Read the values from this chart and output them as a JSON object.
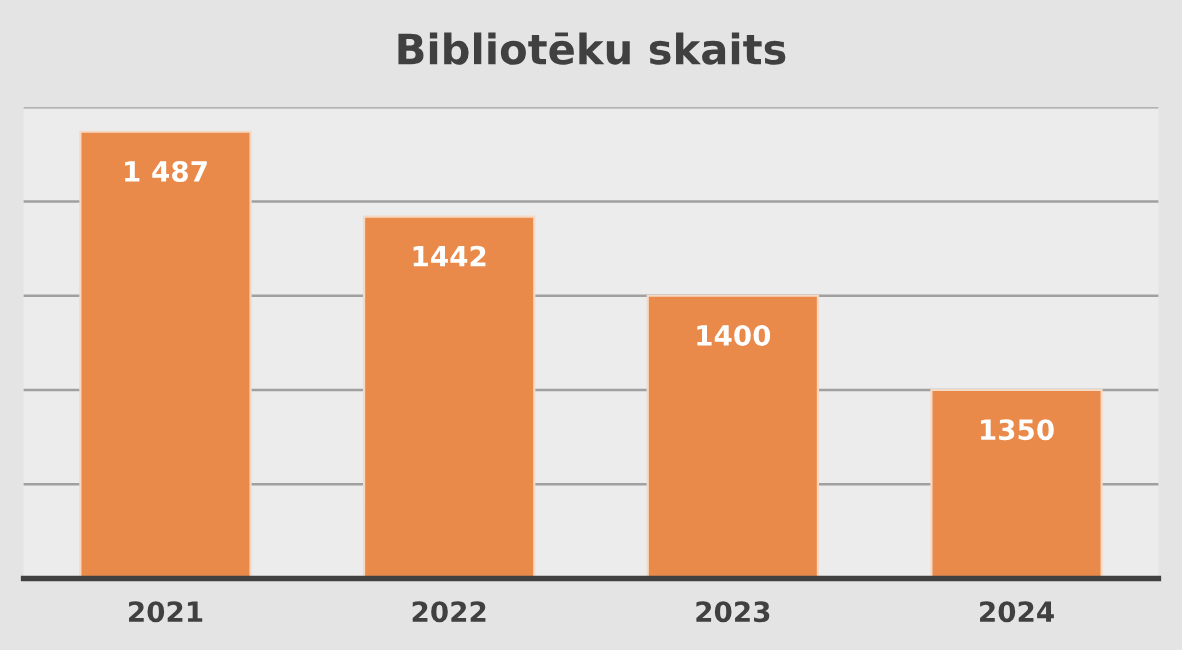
{
  "chart_data": {
    "type": "bar",
    "title": "Bibliotēku skaits",
    "categories": [
      "2021",
      "2022",
      "2023",
      "2024"
    ],
    "values": [
      1487,
      1442,
      1400,
      1350
    ],
    "value_labels": [
      "1 487",
      "1442",
      "1400",
      "1350"
    ],
    "color": "#e98a4b",
    "ylim": [
      1250,
      1500
    ],
    "yticks": [
      {
        "value": 1250,
        "label": null
      },
      {
        "value": 1300,
        "label": null
      },
      {
        "value": 1350,
        "label": null
      },
      {
        "value": 1400,
        "label": null
      },
      {
        "value": 1450,
        "label": null
      },
      {
        "value": 1500,
        "label": null
      }
    ],
    "grid": "y",
    "tick_labels": "x"
  }
}
